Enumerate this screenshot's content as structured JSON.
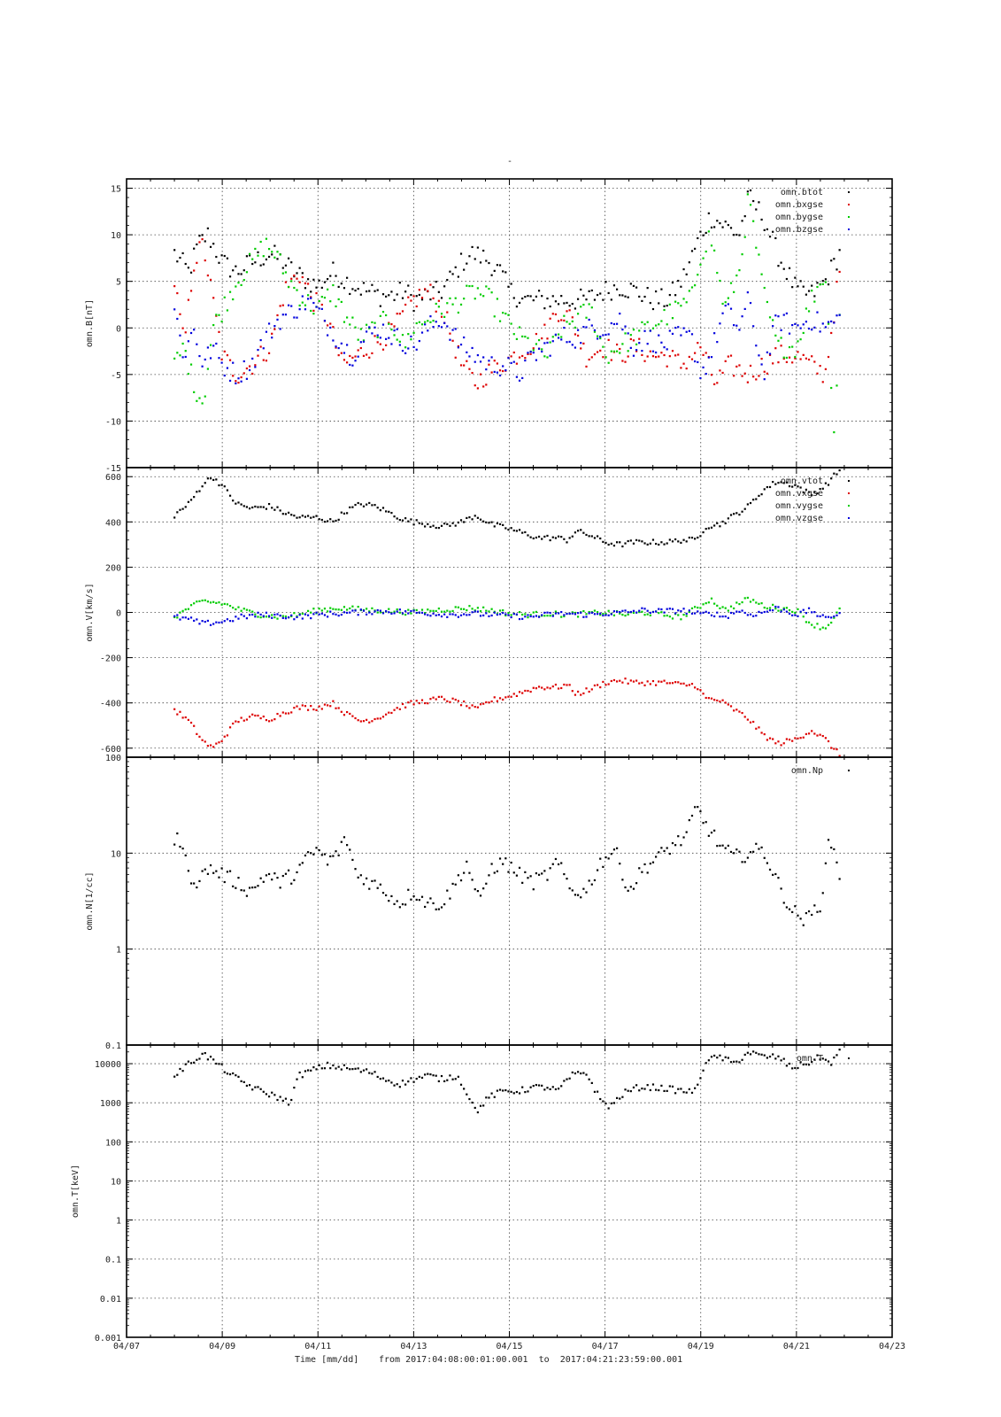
{
  "title": "-",
  "footer": {
    "xlabel": "Time [mm/dd]",
    "range_text": "from 2017:04:08:00:01:00.001  to  2017:04:21:23:59:00.001"
  },
  "chart_data": [
    {
      "type": "scatter",
      "ylabel": "omn.B[nT]",
      "yscale": "linear",
      "ylim": [
        -15,
        16
      ],
      "yticks": [
        -15,
        -10,
        -5,
        0,
        5,
        10,
        15
      ],
      "xlim": [
        "04/07",
        "04/23"
      ],
      "grid": true,
      "legend_position": "top-right",
      "series": [
        {
          "name": "omn.btot",
          "color": "#000000",
          "x": [
            8.0,
            8.3,
            8.5,
            8.7,
            9.0,
            9.3,
            9.6,
            10.0,
            10.3,
            10.5,
            10.8,
            11.0,
            11.3,
            11.6,
            12.0,
            12.3,
            12.6,
            12.8,
            13.0,
            13.3,
            13.6,
            14.0,
            14.2,
            14.5,
            14.8,
            15.0,
            15.3,
            15.6,
            16.0,
            16.3,
            16.6,
            17.0,
            17.3,
            17.6,
            18.0,
            18.3,
            18.6,
            19.0,
            19.2,
            19.5,
            19.8,
            20.0,
            20.3,
            20.6,
            21.0,
            21.3,
            21.6,
            21.9
          ],
          "y": [
            8,
            6,
            9,
            10,
            7,
            6,
            7,
            8,
            7,
            6,
            5,
            4.5,
            6,
            5,
            4,
            3.5,
            3.5,
            4,
            3,
            3.5,
            4,
            7,
            8,
            7.5,
            6,
            4,
            3,
            3,
            3,
            3,
            3,
            4,
            4.5,
            4,
            3,
            3,
            5,
            10,
            12,
            11,
            10,
            14,
            12,
            8,
            4,
            3.5,
            5,
            8
          ]
        },
        {
          "name": "omn.bxgse",
          "color": "#dd0000",
          "x": [
            8.0,
            8.2,
            8.4,
            8.6,
            8.8,
            9.0,
            9.3,
            9.6,
            10.0,
            10.3,
            10.6,
            10.9,
            11.2,
            11.5,
            11.8,
            12.1,
            12.4,
            12.6,
            13.0,
            13.3,
            13.6,
            14.0,
            14.3,
            14.5,
            14.8,
            15.1,
            15.4,
            15.7,
            16.0,
            16.3,
            16.6,
            17.0,
            17.3,
            17.6,
            18.0,
            18.3,
            18.6,
            19.0,
            19.3,
            19.6,
            20.0,
            20.3,
            20.6,
            21.0,
            21.3,
            21.6,
            21.9
          ],
          "y": [
            5,
            -2,
            7,
            9,
            3,
            -3,
            -5,
            -4,
            -2,
            4,
            6,
            3,
            1,
            -4,
            -3,
            -2,
            -1,
            0,
            3,
            4,
            2,
            -4,
            -6,
            -5,
            -4,
            -3,
            -2,
            -1,
            2,
            1,
            -3,
            -2,
            -3,
            -2,
            -3,
            -3,
            -4,
            -2,
            -6,
            -4,
            -5,
            -4,
            -3,
            -3,
            -4,
            -5,
            6
          ]
        },
        {
          "name": "omn.bygse",
          "color": "#00cc00",
          "x": [
            8.0,
            8.2,
            8.4,
            8.6,
            8.8,
            9.0,
            9.3,
            9.6,
            9.9,
            10.1,
            10.4,
            10.7,
            11.0,
            11.3,
            11.6,
            11.9,
            12.2,
            12.5,
            12.8,
            13.0,
            13.3,
            13.6,
            14.0,
            14.3,
            14.6,
            14.9,
            15.2,
            15.5,
            15.8,
            16.1,
            16.4,
            16.7,
            17.0,
            17.3,
            17.6,
            17.9,
            18.2,
            18.5,
            18.8,
            19.0,
            19.2,
            19.5,
            19.8,
            20.0,
            20.3,
            20.6,
            21.0,
            21.3,
            21.6,
            21.8,
            21.9
          ],
          "y": [
            -4,
            -2,
            -6,
            -8,
            0,
            2,
            5,
            7,
            9,
            8,
            5,
            3,
            2,
            4,
            1,
            -1,
            0,
            1,
            -2,
            0,
            1,
            2,
            3,
            4,
            3,
            1,
            -1,
            -2,
            -3,
            0,
            1,
            2,
            -3,
            -2,
            -1,
            0,
            1,
            2,
            3,
            8,
            10,
            2,
            6,
            14,
            4,
            -2,
            -2,
            3,
            6,
            -12,
            2
          ]
        },
        {
          "name": "omn.bzgse",
          "color": "#0000dd",
          "x": [
            8.0,
            8.2,
            8.4,
            8.6,
            8.8,
            9.0,
            9.3,
            9.6,
            9.9,
            10.2,
            10.5,
            10.8,
            11.1,
            11.4,
            11.7,
            12.0,
            12.3,
            12.6,
            13.0,
            13.3,
            13.6,
            14.0,
            14.3,
            14.6,
            14.9,
            15.2,
            15.5,
            15.8,
            16.1,
            16.4,
            16.7,
            17.0,
            17.3,
            17.6,
            17.9,
            18.2,
            18.5,
            18.8,
            19.0,
            19.2,
            19.5,
            19.8,
            20.0,
            20.3,
            20.6,
            21.0,
            21.3,
            21.6,
            21.9
          ],
          "y": [
            2,
            -3,
            0,
            -4,
            -2,
            -4,
            -5,
            -4,
            -1,
            1,
            2,
            3,
            1,
            -1,
            -3,
            -1,
            0,
            -1,
            -2,
            0,
            1,
            -2,
            -3,
            -4,
            -4,
            -5,
            -3,
            -2,
            -1,
            -1,
            0,
            0,
            1,
            -2,
            -1,
            -2,
            -1,
            -1,
            -5,
            -3,
            2,
            0,
            3,
            -5,
            1,
            0,
            1,
            0,
            1
          ]
        }
      ]
    },
    {
      "type": "scatter",
      "ylabel": "omn.V[km/s]",
      "yscale": "linear",
      "ylim": [
        -640,
        640
      ],
      "yticks": [
        -600,
        -400,
        -200,
        0,
        200,
        400,
        600
      ],
      "xlim": [
        "04/07",
        "04/23"
      ],
      "grid": true,
      "legend_position": "top-right",
      "series": [
        {
          "name": "omn.vtot",
          "color": "#000000",
          "x": [
            8.0,
            8.3,
            8.6,
            8.8,
            9.0,
            9.3,
            9.6,
            10.0,
            10.3,
            10.6,
            11.0,
            11.3,
            11.6,
            11.9,
            12.2,
            12.5,
            12.8,
            13.0,
            13.3,
            13.6,
            14.0,
            14.3,
            14.6,
            15.0,
            15.3,
            15.6,
            16.0,
            16.2,
            16.4,
            16.7,
            17.0,
            17.3,
            17.6,
            18.0,
            18.3,
            18.6,
            18.9,
            19.1,
            19.4,
            19.7,
            20.0,
            20.3,
            20.6,
            21.0,
            21.3,
            21.6,
            21.9
          ],
          "y": [
            430,
            480,
            570,
            600,
            560,
            480,
            460,
            470,
            440,
            420,
            420,
            400,
            450,
            480,
            470,
            440,
            410,
            400,
            390,
            380,
            400,
            430,
            390,
            370,
            350,
            330,
            330,
            320,
            360,
            340,
            310,
            300,
            310,
            310,
            310,
            320,
            320,
            380,
            390,
            430,
            470,
            540,
            580,
            560,
            520,
            560,
            630
          ]
        },
        {
          "name": "omn.vxgse",
          "color": "#dd0000",
          "x": [
            8.0,
            8.3,
            8.6,
            8.8,
            9.0,
            9.3,
            9.6,
            10.0,
            10.3,
            10.6,
            11.0,
            11.3,
            11.6,
            11.9,
            12.2,
            12.5,
            12.8,
            13.0,
            13.3,
            13.6,
            14.0,
            14.3,
            14.6,
            15.0,
            15.3,
            15.6,
            16.0,
            16.2,
            16.4,
            16.7,
            17.0,
            17.3,
            17.6,
            18.0,
            18.3,
            18.6,
            18.9,
            19.1,
            19.4,
            19.7,
            20.0,
            20.3,
            20.6,
            21.0,
            21.3,
            21.6,
            21.9
          ],
          "y": [
            -430,
            -480,
            -570,
            -600,
            -560,
            -480,
            -460,
            -470,
            -440,
            -420,
            -420,
            -400,
            -450,
            -480,
            -470,
            -440,
            -410,
            -400,
            -390,
            -380,
            -400,
            -430,
            -390,
            -370,
            -350,
            -330,
            -330,
            -320,
            -360,
            -340,
            -310,
            -300,
            -310,
            -310,
            -310,
            -320,
            -320,
            -380,
            -390,
            -430,
            -470,
            -540,
            -580,
            -560,
            -520,
            -560,
            -630
          ]
        },
        {
          "name": "omn.vygse",
          "color": "#00cc00",
          "x": [
            8.0,
            8.3,
            8.6,
            9.0,
            9.4,
            9.8,
            10.2,
            10.6,
            11.0,
            11.4,
            11.8,
            12.2,
            12.6,
            13.0,
            13.4,
            13.8,
            14.2,
            14.6,
            15.0,
            15.4,
            15.8,
            16.2,
            16.6,
            17.0,
            17.4,
            17.8,
            18.2,
            18.6,
            19.0,
            19.2,
            19.5,
            19.8,
            20.0,
            20.3,
            20.6,
            21.0,
            21.3,
            21.6,
            21.9
          ],
          "y": [
            -20,
            20,
            50,
            40,
            10,
            -10,
            -20,
            -10,
            10,
            20,
            15,
            10,
            5,
            0,
            10,
            15,
            20,
            10,
            -5,
            -10,
            -5,
            -10,
            -5,
            0,
            -10,
            0,
            -10,
            -20,
            30,
            60,
            10,
            40,
            60,
            30,
            20,
            10,
            -50,
            -70,
            10
          ]
        },
        {
          "name": "omn.vzgse",
          "color": "#0000dd",
          "x": [
            8.0,
            8.3,
            8.6,
            9.0,
            9.4,
            9.8,
            10.2,
            10.6,
            11.0,
            11.4,
            11.8,
            12.2,
            12.6,
            13.0,
            13.4,
            13.8,
            14.2,
            14.6,
            15.0,
            15.4,
            15.8,
            16.2,
            16.6,
            17.0,
            17.4,
            17.8,
            18.2,
            18.6,
            19.0,
            19.2,
            19.5,
            19.8,
            20.0,
            20.3,
            20.6,
            21.0,
            21.3,
            21.6,
            21.9
          ],
          "y": [
            -20,
            -30,
            -50,
            -40,
            -20,
            -10,
            -15,
            -20,
            -10,
            -5,
            0,
            5,
            5,
            0,
            -5,
            -10,
            -5,
            -10,
            -15,
            -20,
            -10,
            -5,
            -10,
            -5,
            0,
            10,
            5,
            10,
            -10,
            0,
            -20,
            10,
            -10,
            0,
            20,
            -10,
            10,
            -30,
            0
          ]
        }
      ]
    },
    {
      "type": "scatter",
      "ylabel": "omn.N[1/cc]",
      "yscale": "log",
      "ylim": [
        0.1,
        100
      ],
      "yticks": [
        0.1,
        1,
        10,
        100
      ],
      "xlim": [
        "04/07",
        "04/23"
      ],
      "grid": true,
      "legend_position": "top-right",
      "series": [
        {
          "name": "omn.Np",
          "color": "#000000",
          "x": [
            8.0,
            8.1,
            8.3,
            8.5,
            8.7,
            9.0,
            9.3,
            9.6,
            9.9,
            10.2,
            10.5,
            10.8,
            11.0,
            11.2,
            11.4,
            11.6,
            11.8,
            12.1,
            12.4,
            12.7,
            13.0,
            13.3,
            13.6,
            13.9,
            14.1,
            14.4,
            14.6,
            14.9,
            15.2,
            15.5,
            15.8,
            16.0,
            16.3,
            16.6,
            16.9,
            17.2,
            17.5,
            17.8,
            18.1,
            18.4,
            18.7,
            18.9,
            19.1,
            19.4,
            19.7,
            20.0,
            20.3,
            20.6,
            20.9,
            21.2,
            21.5,
            21.7,
            21.9
          ],
          "y": [
            12,
            15,
            6,
            5,
            7,
            6,
            5,
            4,
            6,
            5,
            6,
            9,
            11,
            8,
            10,
            14,
            6,
            5,
            4,
            3,
            4,
            3,
            3,
            5,
            8,
            3,
            7,
            8,
            6,
            5,
            6,
            8,
            4,
            4,
            8,
            11,
            4,
            7,
            9,
            12,
            15,
            30,
            20,
            12,
            9,
            10,
            11,
            5,
            2.5,
            2,
            3,
            15,
            6
          ]
        }
      ]
    },
    {
      "type": "scatter",
      "ylabel": "omn.T[keV]",
      "yscale": "log",
      "ylim": [
        0.001,
        30000
      ],
      "yticks": [
        0.001,
        0.01,
        0.1,
        1,
        10,
        100,
        1000,
        10000
      ],
      "ytick_labels": [
        "0.001",
        "0.01",
        "0.1",
        "1",
        "10",
        "100",
        "1000",
        "10000"
      ],
      "xlim": [
        "04/07",
        "04/23"
      ],
      "grid": true,
      "legend_position": "top-right",
      "series": [
        {
          "name": "omn.T",
          "color": "#000000",
          "x": [
            8.0,
            8.3,
            8.6,
            8.9,
            9.2,
            9.5,
            9.8,
            10.1,
            10.4,
            10.6,
            10.9,
            11.2,
            11.5,
            11.8,
            12.1,
            12.4,
            12.7,
            13.0,
            13.3,
            13.6,
            13.9,
            14.1,
            14.3,
            14.6,
            14.9,
            15.2,
            15.5,
            15.8,
            16.0,
            16.3,
            16.6,
            16.9,
            17.1,
            17.4,
            17.7,
            18.0,
            18.3,
            18.6,
            18.9,
            19.1,
            19.4,
            19.7,
            20.0,
            20.3,
            20.6,
            20.9,
            21.2,
            21.5,
            21.7,
            21.9
          ],
          "y": [
            5000,
            10000,
            18000,
            10000,
            5000,
            3000,
            2000,
            1500,
            1000,
            5000,
            7000,
            9000,
            8000,
            7000,
            6000,
            4000,
            3000,
            4000,
            5000,
            4000,
            5000,
            2000,
            600,
            1500,
            2000,
            2000,
            2500,
            2500,
            2000,
            5000,
            6000,
            1200,
            800,
            1800,
            2500,
            2500,
            2300,
            2000,
            2000,
            12000,
            15000,
            10000,
            20000,
            15000,
            15000,
            8000,
            10000,
            15000,
            10000,
            20000
          ]
        }
      ]
    }
  ]
}
